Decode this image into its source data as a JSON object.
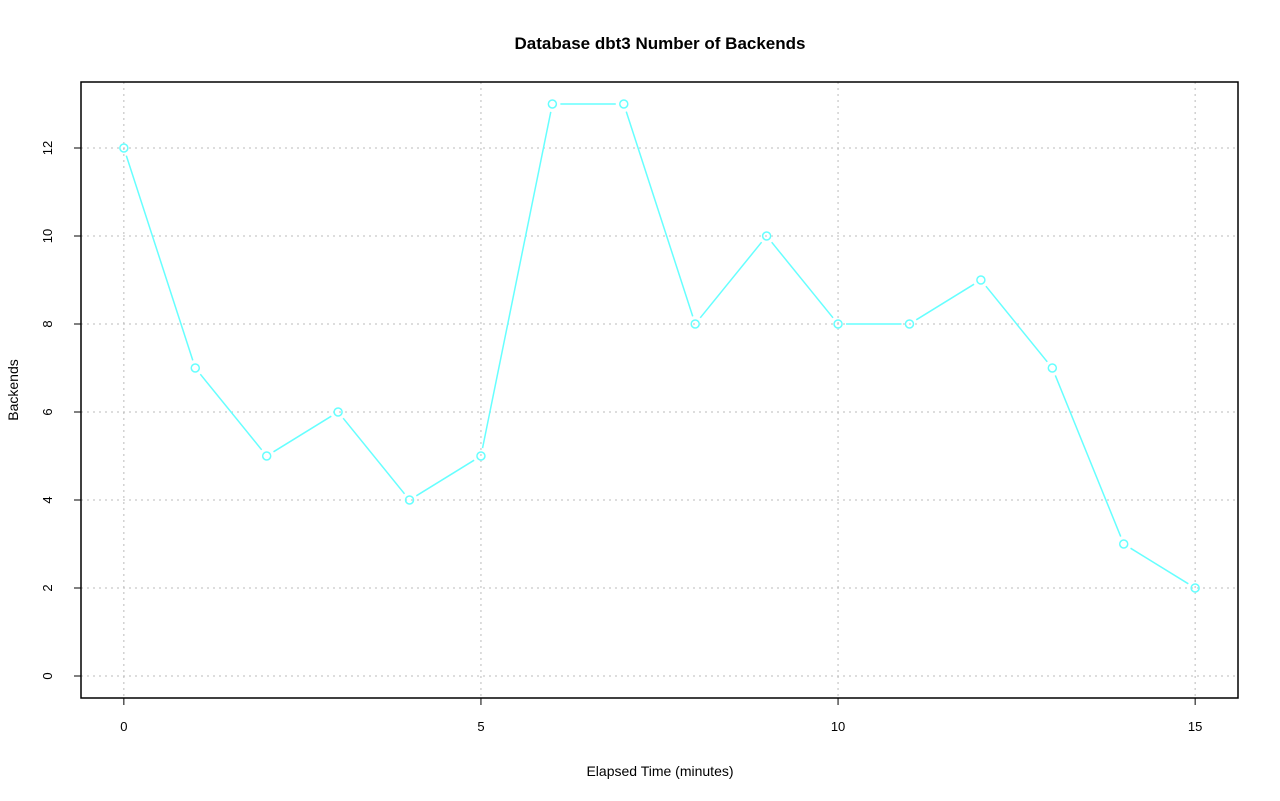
{
  "chart_data": {
    "type": "line",
    "title": "Database dbt3 Number of Backends",
    "xlabel": "Elapsed Time (minutes)",
    "ylabel": "Backends",
    "x": [
      0,
      1,
      2,
      3,
      4,
      5,
      6,
      7,
      8,
      9,
      10,
      11,
      12,
      13,
      14,
      15
    ],
    "series": [
      {
        "values": [
          12,
          7,
          5,
          6,
          4,
          5,
          13,
          13,
          8,
          10,
          8,
          8,
          9,
          7,
          3,
          2
        ],
        "color": "#66ffff"
      }
    ],
    "xlim": [
      -0.6,
      15.6
    ],
    "ylim": [
      -0.5,
      13.5
    ],
    "xticks": [
      "0",
      "5",
      "10",
      "15"
    ],
    "yticks": [
      "0",
      "2",
      "4",
      "6",
      "8",
      "10",
      "12"
    ],
    "grid": true,
    "markers": "open-circle"
  }
}
